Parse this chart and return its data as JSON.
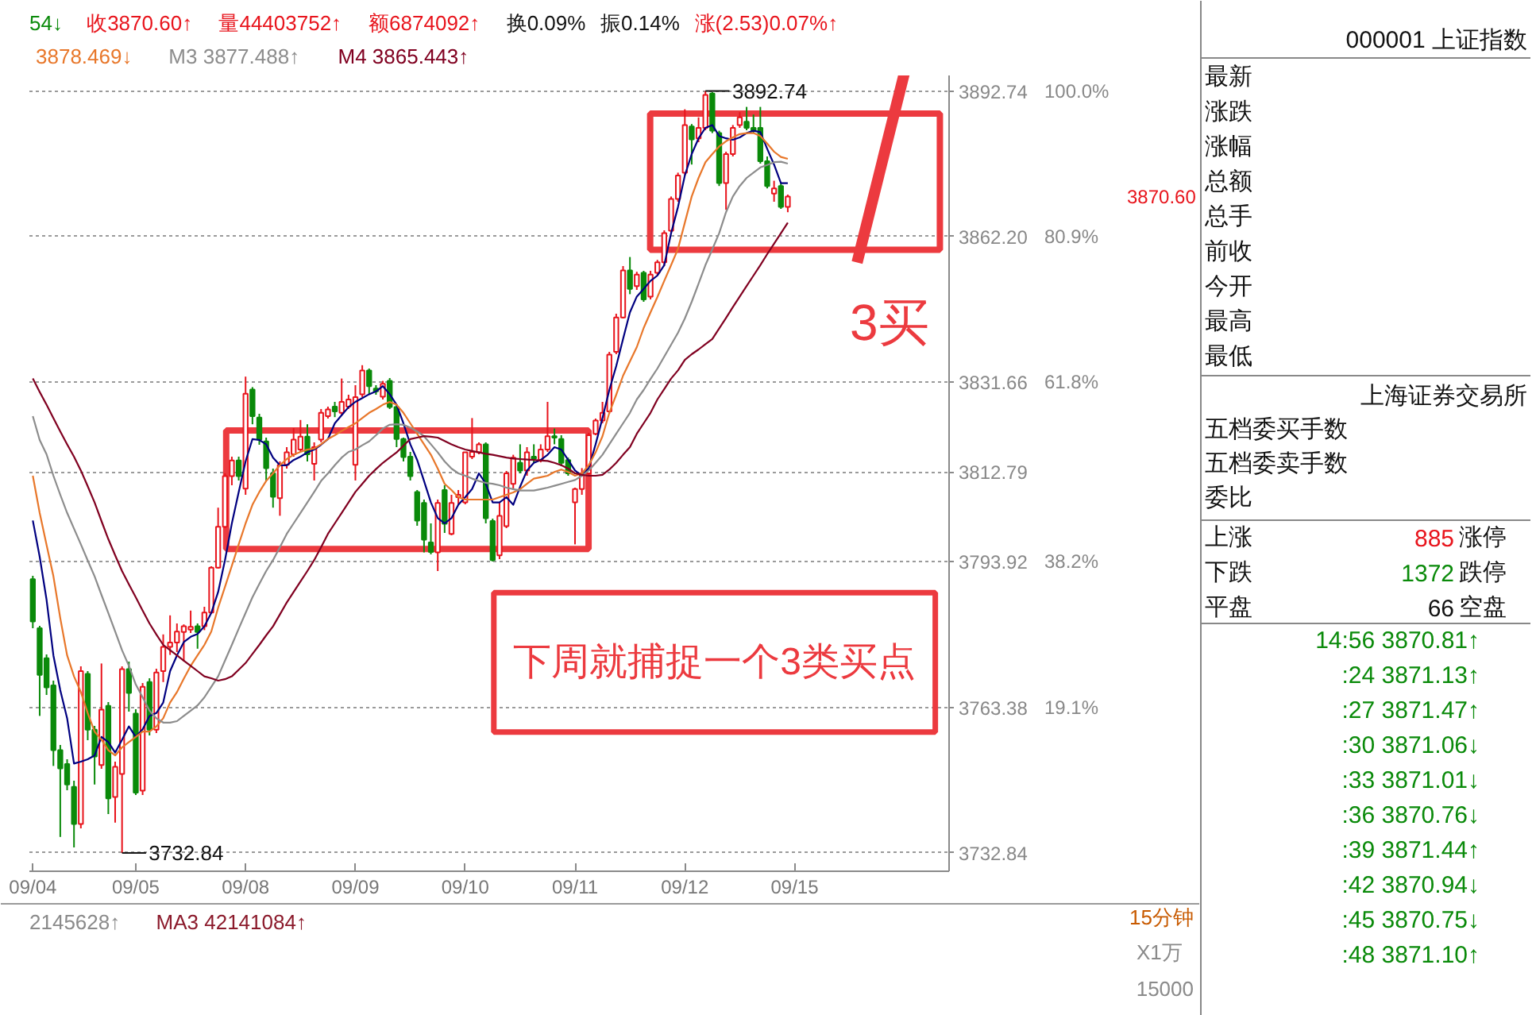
{
  "chart_data": [
    {
      "type": "candlestick",
      "categories": [
        "09/04",
        null,
        null,
        null,
        null,
        null,
        null,
        null,
        null,
        null,
        null,
        null,
        null,
        null,
        null,
        "09/05",
        null,
        null,
        null,
        null,
        null,
        null,
        null,
        null,
        null,
        null,
        null,
        null,
        null,
        null,
        null,
        "09/08",
        null,
        null,
        null,
        null,
        null,
        null,
        null,
        null,
        null,
        null,
        null,
        null,
        null,
        null,
        null,
        "09/09",
        null,
        null,
        null,
        null,
        null,
        null,
        null,
        null,
        null,
        null,
        null,
        null,
        null,
        null,
        null,
        "09/10",
        null,
        null,
        null,
        null,
        null,
        null,
        null,
        null,
        null,
        null,
        null,
        null,
        null,
        null,
        null,
        "09/11",
        null,
        null,
        null,
        null,
        null,
        null,
        null,
        null,
        null,
        null,
        null,
        null,
        null,
        null,
        null,
        "09/12",
        null,
        null,
        null,
        null,
        null,
        null,
        null,
        null,
        null,
        null,
        null,
        null,
        null,
        null,
        null,
        "09/15",
        null,
        null,
        null,
        null,
        null,
        null,
        null,
        null,
        null,
        null,
        null,
        null,
        null,
        null,
        null,
        null,
        null,
        null,
        null,
        null,
        null,
        null
      ],
      "ohlc": [
        [
          3790.3,
          3791.0,
          3780.0,
          3781.4
        ],
        [
          3780.0,
          3780.5,
          3761.6,
          3770.2
        ],
        [
          3773.7,
          3774.5,
          3766.0,
          3767.6
        ],
        [
          3768.0,
          3769.0,
          3751.1,
          3754.4
        ],
        [
          3754.4,
          3755.5,
          3736.2,
          3750.6
        ],
        [
          3751.5,
          3752.5,
          3746.0,
          3747.2
        ],
        [
          3746.7,
          3748.0,
          3734.0,
          3738.9
        ],
        [
          3738.9,
          3772.0,
          3738.0,
          3771.0
        ],
        [
          3770.4,
          3771.0,
          3756.5,
          3758.7
        ],
        [
          3758.7,
          3759.5,
          3747.2,
          3753.1
        ],
        [
          3751.3,
          3772.6,
          3750.5,
          3762.9
        ],
        [
          3763.7,
          3764.5,
          3741.0,
          3744.3
        ],
        [
          3744.6,
          3752.0,
          3739.2,
          3750.9
        ],
        [
          3749.4,
          3772.0,
          3732.84,
          3771.4
        ],
        [
          3771.4,
          3773.0,
          3762.5,
          3766.4
        ],
        [
          3762.1,
          3763.0,
          3745.0,
          3745.5
        ],
        [
          3745.9,
          3768.5,
          3745.0,
          3767.7
        ],
        [
          3768.7,
          3769.5,
          3757.5,
          3758.7
        ],
        [
          3758.7,
          3771.5,
          3758.0,
          3770.7
        ],
        [
          3771.0,
          3778.7,
          3768.7,
          3776.1
        ],
        [
          3776.1,
          3782.7,
          3774.4,
          3777.0
        ],
        [
          3777.0,
          3781.0,
          3775.0,
          3779.3
        ],
        [
          3779.2,
          3780.8,
          3773.0,
          3780.4
        ],
        [
          3779.7,
          3783.7,
          3779.0,
          3780.3
        ],
        [
          3780.4,
          3781.0,
          3775.7,
          3779.2
        ],
        [
          3780.4,
          3784.5,
          3779.6,
          3783.3
        ],
        [
          3783.3,
          3793.0,
          3783.0,
          3792.7
        ],
        [
          3792.7,
          3805.3,
          3792.5,
          3801.3
        ],
        [
          3801.3,
          3812.5,
          3801.0,
          3811.9
        ],
        [
          3811.9,
          3816.0,
          3810.0,
          3815.2
        ],
        [
          3815.2,
          3816.0,
          3811.0,
          3811.9
        ],
        [
          3809.3,
          3832.8,
          3808.0,
          3829.2
        ],
        [
          3830.1,
          3830.6,
          3822.8,
          3824.5
        ],
        [
          3824.2,
          3825.0,
          3818.5,
          3819.6
        ],
        [
          3819.2,
          3820.0,
          3811.0,
          3813.6
        ],
        [
          3812.5,
          3813.5,
          3805.3,
          3807.6
        ],
        [
          3807.3,
          3815.0,
          3803.6,
          3814.3
        ],
        [
          3814.3,
          3818.0,
          3813.5,
          3816.9
        ],
        [
          3816.5,
          3822.0,
          3816.0,
          3819.6
        ],
        [
          3817.5,
          3823.7,
          3817.0,
          3820.2
        ],
        [
          3820.2,
          3822.8,
          3815.0,
          3816.5
        ],
        [
          3814.5,
          3819.0,
          3811.0,
          3818.0
        ],
        [
          3819.6,
          3826.0,
          3819.0,
          3825.2
        ],
        [
          3824.5,
          3826.5,
          3824.0,
          3825.9
        ],
        [
          3826.5,
          3827.5,
          3824.3,
          3825.5
        ],
        [
          3825.2,
          3832.4,
          3824.8,
          3827.5
        ],
        [
          3826.5,
          3829.0,
          3826.0,
          3828.0
        ],
        [
          3814.3,
          3831.0,
          3811.0,
          3828.5
        ],
        [
          3829.1,
          3835.2,
          3828.5,
          3834.1
        ],
        [
          3834.1,
          3834.5,
          3829.1,
          3830.8
        ],
        [
          3830.3,
          3831.0,
          3829.0,
          3829.7
        ],
        [
          3828.6,
          3831.9,
          3828.0,
          3831.3
        ],
        [
          3831.9,
          3832.5,
          3826.0,
          3826.4
        ],
        [
          3826.4,
          3827.0,
          3818.0,
          3819.7
        ],
        [
          3819.7,
          3820.0,
          3815.0,
          3815.9
        ],
        [
          3816.0,
          3817.0,
          3811.0,
          3811.9
        ],
        [
          3808.6,
          3809.0,
          3801.5,
          3802.6
        ],
        [
          3806.3,
          3807.0,
          3795.9,
          3798.6
        ],
        [
          3798.0,
          3802.0,
          3795.5,
          3796.0
        ],
        [
          3795.9,
          3807.0,
          3792.0,
          3806.3
        ],
        [
          3809.0,
          3810.0,
          3800.0,
          3801.9
        ],
        [
          3799.8,
          3808.0,
          3799.5,
          3806.3
        ],
        [
          3807.5,
          3809.0,
          3806.0,
          3808.0
        ],
        [
          3806.4,
          3817.0,
          3806.0,
          3816.9
        ],
        [
          3816.0,
          3824.1,
          3815.5,
          3817.0
        ],
        [
          3816.9,
          3819.0,
          3816.5,
          3818.6
        ],
        [
          3818.6,
          3819.0,
          3802.0,
          3803.1
        ],
        [
          3802.5,
          3803.0,
          3794.0,
          3794.3
        ],
        [
          3795.3,
          3806.4,
          3794.5,
          3803.6
        ],
        [
          3801.4,
          3813.0,
          3801.0,
          3812.5
        ],
        [
          3810.3,
          3816.4,
          3809.0,
          3815.8
        ],
        [
          3814.7,
          3818.6,
          3812.5,
          3813.1
        ],
        [
          3813.1,
          3818.0,
          3812.0,
          3816.9
        ],
        [
          3816.0,
          3818.6,
          3814.7,
          3815.6
        ],
        [
          3815.3,
          3818.6,
          3814.8,
          3817.5
        ],
        [
          3817.5,
          3827.5,
          3817.0,
          3820.3
        ],
        [
          3820.3,
          3821.9,
          3818.6,
          3820.0
        ],
        [
          3819.7,
          3820.5,
          3814.0,
          3814.7
        ],
        [
          3815.3,
          3815.8,
          3812.0,
          3812.5
        ],
        [
          3806.4,
          3809.5,
          3797.6,
          3809.2
        ],
        [
          3809.2,
          3813.6,
          3808.0,
          3812.5
        ],
        [
          3812.5,
          3821.0,
          3812.0,
          3820.5
        ],
        [
          3820.8,
          3824.0,
          3820.5,
          3823.6
        ],
        [
          3823.6,
          3827.5,
          3823.0,
          3825.2
        ],
        [
          3825.5,
          3838.0,
          3825.0,
          3837.4
        ],
        [
          3838.0,
          3846.0,
          3837.5,
          3845.2
        ],
        [
          3845.2,
          3856.0,
          3845.0,
          3855.1
        ],
        [
          3855.1,
          3857.9,
          3850.1,
          3851.2
        ],
        [
          3851.8,
          3854.8,
          3851.0,
          3854.2
        ],
        [
          3854.6,
          3855.0,
          3848.5,
          3849.0
        ],
        [
          3849.6,
          3855.0,
          3849.0,
          3854.2
        ],
        [
          3854.6,
          3857.3,
          3854.0,
          3856.8
        ],
        [
          3856.8,
          3863.5,
          3856.0,
          3862.9
        ],
        [
          3863.4,
          3870.6,
          3863.0,
          3870.1
        ],
        [
          3870.1,
          3875.6,
          3869.5,
          3875.0
        ],
        [
          3875.6,
          3888.9,
          3875.0,
          3885.6
        ],
        [
          3885.3,
          3885.8,
          3877.3,
          3882.6
        ],
        [
          3882.8,
          3887.2,
          3882.0,
          3885.0
        ],
        [
          3885.0,
          3892.74,
          3884.5,
          3891.9
        ],
        [
          3892.2,
          3892.5,
          3883.9,
          3884.4
        ],
        [
          3883.9,
          3884.4,
          3872.8,
          3873.4
        ],
        [
          3873.4,
          3880.0,
          3867.8,
          3879.5
        ],
        [
          3879.5,
          3885.6,
          3879.0,
          3885.0
        ],
        [
          3885.6,
          3888.3,
          3885.0,
          3887.2
        ],
        [
          3886.3,
          3889.4,
          3884.5,
          3885.0
        ],
        [
          3885.0,
          3887.8,
          3883.9,
          3884.4
        ],
        [
          3885.0,
          3889.4,
          3877.5,
          3878.0
        ],
        [
          3878.0,
          3879.0,
          3872.3,
          3872.8
        ],
        [
          3871.2,
          3873.9,
          3869.5,
          3872.3
        ],
        [
          3872.8,
          3873.4,
          3868.0,
          3868.4
        ],
        [
          3868.4,
          3871.0,
          3867.3,
          3870.6
        ],
        null,
        null,
        null,
        null,
        null,
        null,
        null,
        null,
        null,
        null,
        null,
        null,
        null,
        null,
        null,
        null,
        null,
        null,
        null,
        null,
        null,
        null,
        null
      ],
      "series": [
        {
          "type": "line",
          "color": "#000080",
          "values": [
            3802.6,
            3795.0,
            3786.0,
            3774.3,
            3767.0,
            3761.1,
            3751.6,
            3752.0,
            3752.5,
            3753.3,
            3757.2,
            3756.1,
            3753.9,
            3756.6,
            3759.4,
            3757.2,
            3758.8,
            3761.6,
            3762.2,
            3764.4,
            3771.0,
            3774.3,
            3777.1,
            3778.2,
            3778.8,
            3780.4,
            3783.2,
            3787.6,
            3794.3,
            3802.0,
            3808.6,
            3815.0,
            3819.7,
            3819.5,
            3818.6,
            3815.8,
            3814.2,
            3814.2,
            3815.3,
            3816.0,
            3816.9,
            3817.5,
            3818.5,
            3819.7,
            3823.0,
            3824.7,
            3826.4,
            3827.5,
            3828.3,
            3829.1,
            3829.7,
            3830.8,
            3829.1,
            3826.9,
            3823.0,
            3818.6,
            3815.3,
            3810.9,
            3806.4,
            3803.1,
            3802.0,
            3803.1,
            3805.9,
            3807.5,
            3809.2,
            3812.5,
            3810.3,
            3806.4,
            3806.4,
            3807.5,
            3805.9,
            3809.7,
            3813.1,
            3814.7,
            3815.3,
            3816.4,
            3818.0,
            3817.5,
            3815.3,
            3813.1,
            3812.0,
            3813.6,
            3818.6,
            3824.1,
            3830.0,
            3835.0,
            3840.7,
            3846.3,
            3849.6,
            3851.2,
            3852.9,
            3854.0,
            3856.2,
            3862.9,
            3868.4,
            3875.0,
            3879.5,
            3882.8,
            3885.0,
            3885.6,
            3883.3,
            3882.8,
            3882.5,
            3883.0,
            3883.9,
            3884.4,
            3884.1,
            3880.6,
            3877.3,
            3873.4,
            3873.4,
            null,
            null,
            null,
            null,
            null,
            null,
            null,
            null,
            null,
            null,
            null,
            null,
            null,
            null,
            null,
            null,
            null,
            null,
            null,
            null,
            null,
            null,
            null
          ]
        },
        {
          "type": "line",
          "name": "3878.469↓",
          "color": "#e8772a",
          "values": [
            3812.0,
            3804.2,
            3797.5,
            3790.9,
            3782.1,
            3774.3,
            3769.9,
            3766.6,
            3762.2,
            3758.3,
            3756.6,
            3754.4,
            3753.3,
            3755.0,
            3756.1,
            3757.2,
            3758.3,
            3758.3,
            3759.4,
            3761.1,
            3764.4,
            3766.6,
            3769.4,
            3772.1,
            3774.3,
            3776.5,
            3779.3,
            3784.3,
            3788.7,
            3793.1,
            3797.6,
            3802.0,
            3805.9,
            3808.6,
            3810.9,
            3812.5,
            3814.2,
            3815.5,
            3816.4,
            3817.0,
            3817.5,
            3817.7,
            3818.6,
            3819.7,
            3820.5,
            3821.4,
            3822.2,
            3823.0,
            3824.1,
            3825.2,
            3826.0,
            3826.9,
            3827.5,
            3826.9,
            3825.2,
            3823.0,
            3820.8,
            3818.6,
            3816.4,
            3813.5,
            3810.3,
            3809.0,
            3807.5,
            3807.0,
            3807.0,
            3807.0,
            3807.0,
            3807.0,
            3807.5,
            3808.0,
            3808.5,
            3809.2,
            3810.3,
            3811.4,
            3811.7,
            3812.0,
            3812.8,
            3813.3,
            3812.8,
            3812.0,
            3812.5,
            3814.2,
            3816.9,
            3820.3,
            3825.2,
            3829.0,
            3833.0,
            3836.0,
            3839.0,
            3843.0,
            3846.3,
            3849.5,
            3852.9,
            3856.2,
            3859.6,
            3865.1,
            3870.6,
            3874.5,
            3877.8,
            3879.5,
            3881.1,
            3882.2,
            3883.0,
            3883.7,
            3883.9,
            3883.9,
            3883.3,
            3881.7,
            3880.0,
            3878.9,
            3878.5,
            null,
            null,
            null,
            null,
            null,
            null,
            null,
            null,
            null,
            null,
            null,
            null,
            null,
            null,
            null,
            null,
            null,
            null,
            null,
            null,
            null,
            null,
            null
          ]
        },
        {
          "type": "line",
          "name": "M3 3877.488↑",
          "color": "#8c8c8c",
          "values": [
            3824.5,
            3819.5,
            3816.5,
            3812.0,
            3808.0,
            3804.2,
            3800.9,
            3797.6,
            3794.2,
            3790.9,
            3787.0,
            3783.2,
            3779.3,
            3775.4,
            3772.1,
            3768.2,
            3765.5,
            3762.7,
            3761.1,
            3760.2,
            3760.2,
            3760.5,
            3761.6,
            3762.7,
            3763.8,
            3765.5,
            3767.7,
            3769.9,
            3773.2,
            3776.5,
            3779.9,
            3783.2,
            3786.5,
            3789.3,
            3792.0,
            3794.3,
            3797.0,
            3799.8,
            3802.0,
            3804.2,
            3806.4,
            3808.6,
            3810.9,
            3812.5,
            3814.2,
            3815.8,
            3817.0,
            3817.5,
            3818.4,
            3819.2,
            3820.5,
            3821.9,
            3822.7,
            3822.8,
            3822.7,
            3822.1,
            3821.3,
            3820.3,
            3818.6,
            3816.9,
            3815.0,
            3813.5,
            3812.5,
            3812.0,
            3811.4,
            3810.9,
            3810.5,
            3810.3,
            3810.0,
            3809.5,
            3809.2,
            3808.9,
            3808.9,
            3808.9,
            3809.2,
            3809.5,
            3809.9,
            3810.3,
            3810.7,
            3811.1,
            3812.0,
            3813.1,
            3814.7,
            3816.4,
            3818.6,
            3820.8,
            3823.0,
            3825.2,
            3828.0,
            3830.0,
            3832.3,
            3834.5,
            3837.0,
            3839.5,
            3842.0,
            3845.0,
            3848.5,
            3852.3,
            3856.2,
            3859.5,
            3862.9,
            3867.3,
            3870.6,
            3872.8,
            3874.5,
            3875.6,
            3876.7,
            3877.2,
            3877.8,
            3877.9,
            3877.5,
            null,
            null,
            null,
            null,
            null,
            null,
            null,
            null,
            null,
            null,
            null,
            null,
            null,
            null,
            null,
            null,
            null,
            null,
            null,
            null,
            null,
            null,
            null
          ]
        },
        {
          "type": "line",
          "name": "M4 3865.443↑",
          "color": "#800020",
          "values": [
            3832.4,
            3829.6,
            3826.9,
            3824.1,
            3821.3,
            3818.6,
            3816.0,
            3813.1,
            3809.8,
            3806.4,
            3802.5,
            3798.7,
            3795.3,
            3792.0,
            3789.2,
            3786.5,
            3783.7,
            3781.0,
            3778.7,
            3776.5,
            3775.4,
            3774.3,
            3773.2,
            3772.1,
            3771.0,
            3769.9,
            3769.5,
            3769.0,
            3769.3,
            3769.9,
            3771.3,
            3772.7,
            3774.6,
            3776.5,
            3778.5,
            3780.4,
            3782.9,
            3785.4,
            3787.6,
            3789.8,
            3792.0,
            3794.3,
            3797.0,
            3799.8,
            3802.0,
            3804.2,
            3806.4,
            3808.6,
            3810.3,
            3812.0,
            3813.4,
            3814.7,
            3815.8,
            3816.9,
            3818.3,
            3819.7,
            3820.0,
            3820.3,
            3820.2,
            3820.0,
            3819.3,
            3818.6,
            3818.0,
            3817.5,
            3817.2,
            3816.9,
            3816.6,
            3816.4,
            3816.1,
            3815.8,
            3815.6,
            3815.5,
            3815.4,
            3815.3,
            3815.2,
            3815.1,
            3814.7,
            3814.2,
            3813.5,
            3812.5,
            3812.2,
            3812.0,
            3812.0,
            3812.2,
            3813.3,
            3814.7,
            3816.4,
            3818.0,
            3820.8,
            3823.0,
            3825.2,
            3828.0,
            3830.2,
            3832.4,
            3834.1,
            3836.3,
            3837.5,
            3838.5,
            3839.6,
            3840.7,
            3842.9,
            3845.1,
            3847.4,
            3849.6,
            3851.8,
            3854.0,
            3856.2,
            3858.5,
            3860.7,
            3862.9,
            3865.1,
            null,
            null,
            null,
            null,
            null,
            null,
            null,
            null,
            null,
            null,
            null,
            null,
            null,
            null,
            null,
            null,
            null,
            null,
            null,
            null,
            null,
            null,
            null
          ]
        }
      ],
      "ylim": [
        3729.0,
        3896.0
      ],
      "yticks": [
        3732.84,
        3763.38,
        3793.92,
        3812.79,
        3831.66,
        {
          "value": 3862.2,
          "label": "3862.20"
        },
        3892.74
      ],
      "y2lim": [
        -2.4,
        102.04
      ],
      "y2ticks": [
        {
          "value": 19.1,
          "label": "19.1%"
        },
        {
          "value": 38.2,
          "label": "38.2%"
        },
        {
          "value": 61.8,
          "label": "61.8%"
        },
        {
          "value": 80.9,
          "label": "80.9%"
        },
        {
          "value": 100,
          "label": "100.0%"
        }
      ],
      "grid": "y",
      "legend": "top left",
      "annotations": [
        "54↓",
        "收3870.60↑",
        "量44403752↑",
        "额6874092↑",
        "换0.09%",
        "振0.14%",
        "涨(2.53)0.07%↑",
        "3买",
        "下周就捕捉一个3类买点",
        "3892.74",
        "3732.84",
        "3870.60"
      ]
    },
    {
      "type": "other",
      "annotations": [
        "2145628↑",
        "MA3 42141084↑",
        "15分钟",
        "X1万",
        "15000"
      ]
    },
    {
      "type": "other",
      "title": "000001 上证指数",
      "annotations": [
        "最新",
        "涨跌",
        "涨幅",
        "总额",
        "总手",
        "前收",
        "今开",
        "最高",
        "最低",
        "上海证券交易所",
        "五档委买手数",
        "五档委卖手数",
        "委比",
        "上涨",
        "885",
        "涨停",
        "下跌",
        "1372",
        "跌停",
        "平盘",
        "66",
        "空盘",
        "14:56 3870.81↑",
        ":24 3871.13↑",
        ":27 3871.47↑",
        ":30 3871.06↓",
        ":33 3871.01↓",
        ":36 3870.76↓",
        ":39 3871.44↑",
        ":42 3870.94↓",
        ":45 3870.75↓",
        ":48 3871.10↑"
      ]
    }
  ]
}
